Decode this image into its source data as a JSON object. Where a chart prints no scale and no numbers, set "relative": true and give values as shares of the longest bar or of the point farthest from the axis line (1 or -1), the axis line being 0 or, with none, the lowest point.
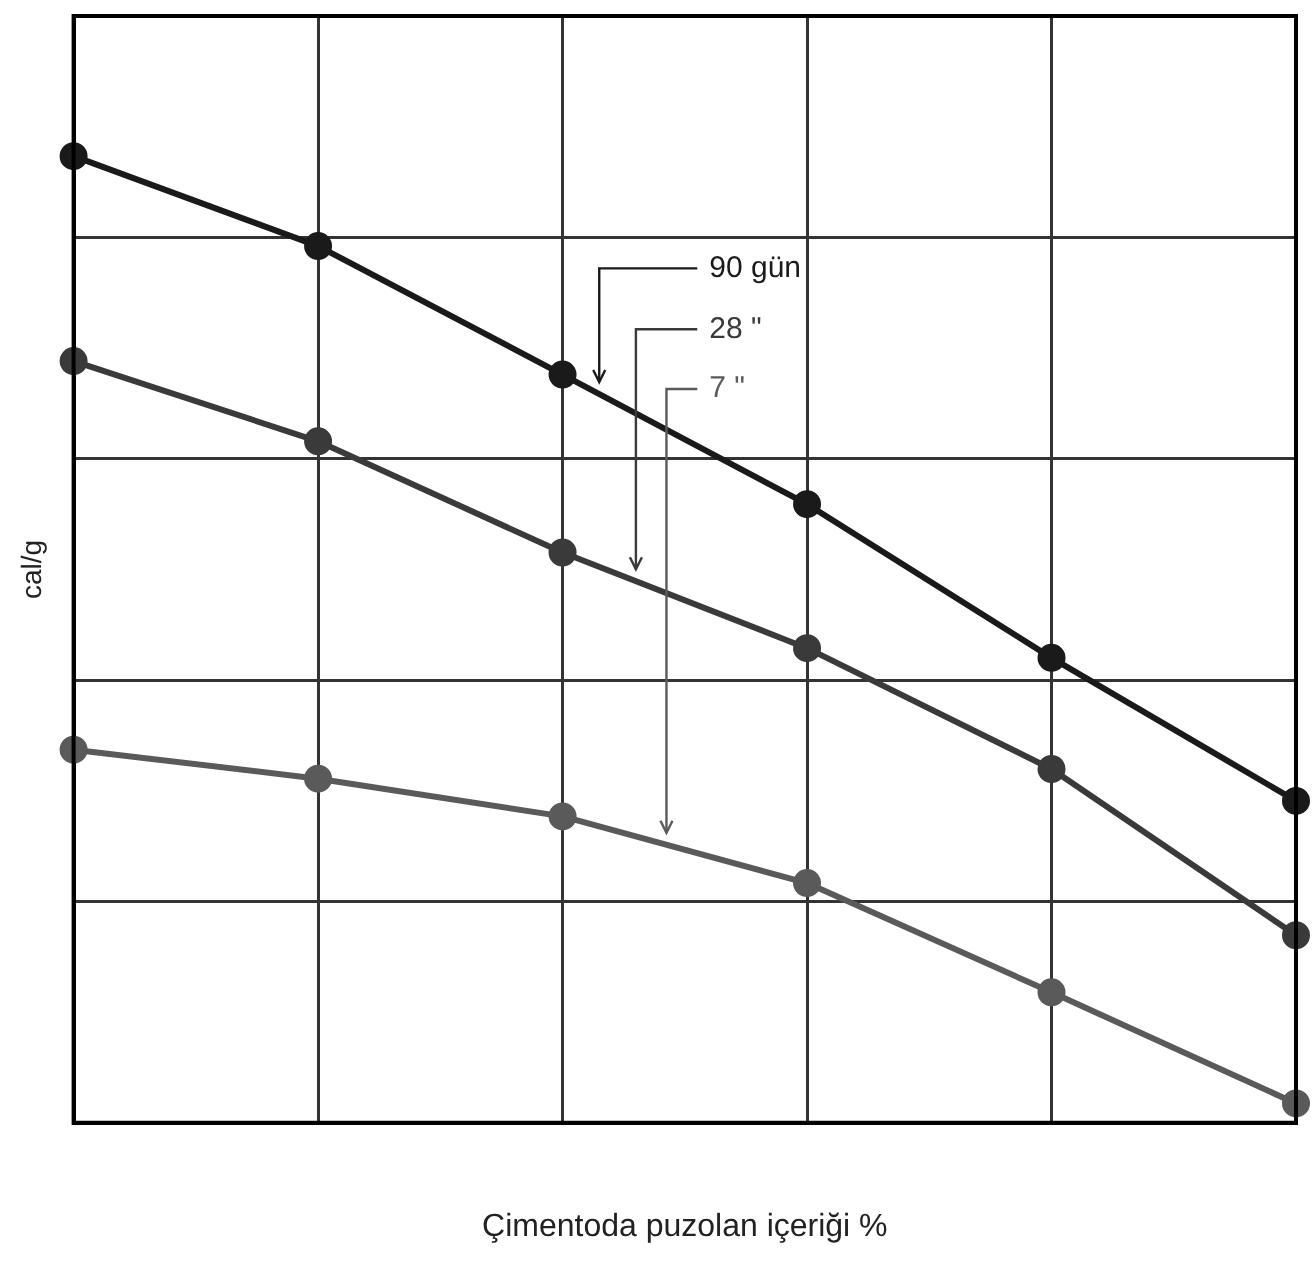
{
  "chart_data": {
    "type": "line",
    "relative": true,
    "xlabel": "Çimentoda puzolan içeriği %",
    "ylabel": "cal/g",
    "categories": [
      null,
      null,
      null,
      null,
      null,
      null
    ],
    "grid": true,
    "legend": "top",
    "marker": "circle",
    "line_style": "solid",
    "series": [
      {
        "name": "90 gün",
        "color": "#1a1a1a",
        "values": [
          1,
          0.907,
          0.774,
          0.64,
          0.481,
          0.333
        ]
      },
      {
        "name": "28 \"",
        "color": "#3a3a3a",
        "values": [
          0.788,
          0.705,
          0.59,
          0.491,
          0.366,
          0.194
        ]
      },
      {
        "name": "7 \"",
        "color": "#5a5a5a",
        "values": [
          0.386,
          0.356,
          0.317,
          0.248,
          0.135,
          0.02
        ]
      }
    ]
  }
}
